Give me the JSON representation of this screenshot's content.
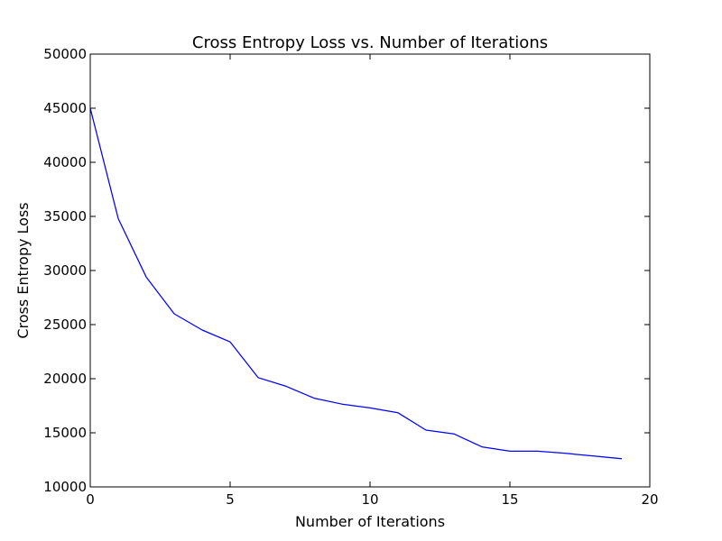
{
  "chart_data": {
    "type": "line",
    "title": "Cross Entropy Loss vs. Number of Iterations",
    "xlabel": "Number of Iterations",
    "ylabel": "Cross Entropy Loss",
    "xlim": [
      0,
      20
    ],
    "ylim": [
      10000,
      50000
    ],
    "x_ticks": [
      0,
      5,
      10,
      15,
      20
    ],
    "y_ticks": [
      10000,
      15000,
      20000,
      25000,
      30000,
      35000,
      40000,
      45000,
      50000
    ],
    "grid": false,
    "series": [
      {
        "color": "#0000ff",
        "x": [
          0,
          1,
          2,
          3,
          4,
          5,
          6,
          7,
          8,
          9,
          10,
          11,
          12,
          13,
          14,
          15,
          16,
          17,
          18,
          19
        ],
        "y": [
          45000,
          34800,
          29400,
          26000,
          24500,
          23400,
          20100,
          19300,
          18200,
          17650,
          17300,
          16850,
          15250,
          14900,
          13700,
          13300,
          13300,
          13100,
          12850,
          12600
        ]
      }
    ]
  }
}
